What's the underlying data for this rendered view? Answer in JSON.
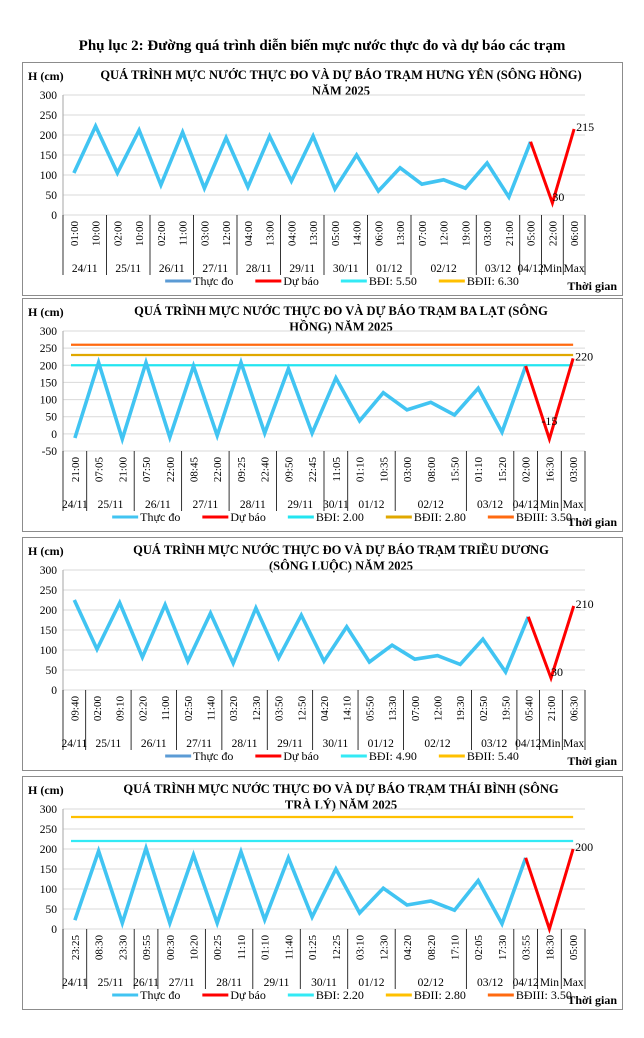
{
  "document_title": "Phụ lục 2: Đường quá trình diễn biến mực nước thực đo và dự báo các trạm",
  "chart_data": [
    {
      "type": "line",
      "title": [
        "QUÁ TRÌNH MỰC NƯỚC THỰC ĐO VÀ DỰ BÁO TRẠM HƯNG YÊN  (SÔNG HỒNG)",
        "NĂM 2025"
      ],
      "ylabel": "H (cm)",
      "xlabel": "Thời gian",
      "ylim": [
        0,
        300
      ],
      "yticks": [
        0,
        50,
        100,
        150,
        200,
        250,
        300
      ],
      "grid": true,
      "legend_position": "bottom",
      "categories": [
        "01:00",
        "10:00",
        "02:00",
        "10:00",
        "02:00",
        "11:00",
        "03:00",
        "12:00",
        "04:00",
        "13:00",
        "04:00",
        "13:00",
        "05:00",
        "14:00",
        "06:00",
        "13:00",
        "07:00",
        "12:00",
        "19:00",
        "03:00",
        "21:00",
        "05:00",
        "22:00",
        "06:00"
      ],
      "groups": [
        {
          "label": "24/11",
          "count": 2
        },
        {
          "label": "25/11",
          "count": 2
        },
        {
          "label": "26/11",
          "count": 2
        },
        {
          "label": "27/11",
          "count": 2
        },
        {
          "label": "28/11",
          "count": 2
        },
        {
          "label": "29/11",
          "count": 2
        },
        {
          "label": "30/11",
          "count": 2
        },
        {
          "label": "01/12",
          "count": 2
        },
        {
          "label": "02/12",
          "count": 3
        },
        {
          "label": "03/12",
          "count": 2
        },
        {
          "label": "04/12",
          "count": 1
        },
        {
          "label": "Min",
          "count": 1
        },
        {
          "label": "Max",
          "count": 1
        }
      ],
      "series": [
        {
          "name": "Thực đo",
          "color": "#41c4f2",
          "legend_color": "#5b9bd5",
          "values": [
            105,
            222,
            105,
            212,
            75,
            207,
            67,
            193,
            70,
            197,
            85,
            197,
            65,
            150,
            60,
            118,
            77,
            88,
            67,
            130,
            45,
            183,
            null,
            null
          ]
        },
        {
          "name": "Dự báo",
          "color": "#ff0000",
          "legend_color": "#ff0000",
          "values": [
            null,
            null,
            null,
            null,
            null,
            null,
            null,
            null,
            null,
            null,
            null,
            null,
            null,
            null,
            null,
            null,
            null,
            null,
            null,
            null,
            null,
            183,
            30,
            215
          ]
        }
      ],
      "data_labels": [
        {
          "index": 22,
          "text": "30"
        },
        {
          "index": 23,
          "text": "215"
        }
      ],
      "thresholds": [
        {
          "name": "BĐI: 5.50",
          "color": "#33eaf5",
          "level_cm": null
        },
        {
          "name": "BĐII: 6.30",
          "color": "#ffc000",
          "level_cm": null
        }
      ]
    },
    {
      "type": "line",
      "title": [
        "QUÁ TRÌNH MỰC NƯỚC THỰC ĐO VÀ DỰ BÁO TRẠM  BA LẠT (SÔNG",
        "HỒNG) NĂM 2025"
      ],
      "ylabel": "H (cm)",
      "xlabel": "Thời gian",
      "ylim": [
        -50,
        300
      ],
      "yticks": [
        -50,
        0,
        50,
        100,
        150,
        200,
        250,
        300
      ],
      "grid": true,
      "legend_position": "bottom",
      "categories": [
        "21:00",
        "07:05",
        "21:00",
        "07:50",
        "22:00",
        "08:45",
        "22:00",
        "09:25",
        "22:40",
        "09:50",
        "22:45",
        "11:05",
        "01:10",
        "10:35",
        "03:00",
        "08:00",
        "15:50",
        "01:10",
        "15:20",
        "02:00",
        "16:30",
        "03:00"
      ],
      "groups": [
        {
          "label": "24/11",
          "count": 1
        },
        {
          "label": "25/11",
          "count": 2
        },
        {
          "label": "26/11",
          "count": 2
        },
        {
          "label": "27/11",
          "count": 2
        },
        {
          "label": "28/11",
          "count": 2
        },
        {
          "label": "29/11",
          "count": 2
        },
        {
          "label": "30/11",
          "count": 1
        },
        {
          "label": "01/12",
          "count": 2
        },
        {
          "label": "02/12",
          "count": 3
        },
        {
          "label": "03/12",
          "count": 2
        },
        {
          "label": "04/12",
          "count": 1
        },
        {
          "label": "Min",
          "count": 1
        },
        {
          "label": "Max",
          "count": 1
        }
      ],
      "series": [
        {
          "name": "Thực đo",
          "color": "#41c4f2",
          "legend_color": "#41c4f2",
          "values": [
            -12,
            208,
            -15,
            208,
            -10,
            198,
            -5,
            208,
            2,
            190,
            2,
            163,
            38,
            120,
            70,
            92,
            55,
            133,
            5,
            198,
            null,
            null
          ]
        },
        {
          "name": "Dự báo",
          "color": "#ff0000",
          "legend_color": "#ff0000",
          "values": [
            null,
            null,
            null,
            null,
            null,
            null,
            null,
            null,
            null,
            null,
            null,
            null,
            null,
            null,
            null,
            null,
            null,
            null,
            null,
            198,
            -15,
            220
          ]
        }
      ],
      "data_labels": [
        {
          "index": 20,
          "text": "-15"
        },
        {
          "index": 21,
          "text": "220"
        }
      ],
      "thresholds": [
        {
          "name": "BĐI: 2.00",
          "color": "#22e5f0",
          "level_cm": 200
        },
        {
          "name": "BĐII: 2.80",
          "color": "#e0a800",
          "level_cm": 230
        },
        {
          "name": "BĐIII: 3.50",
          "color": "#ff6a10",
          "level_cm": 260
        }
      ]
    },
    {
      "type": "line",
      "title": [
        "QUÁ TRÌNH MỰC NƯỚC THỰC ĐO VÀ DỰ BÁO TRẠM  TRIỀU DƯƠNG",
        "(SÔNG  LUỘC) NĂM 2025"
      ],
      "ylabel": "H (cm)",
      "xlabel": "Thời gian",
      "ylim": [
        0,
        300
      ],
      "yticks": [
        0,
        50,
        100,
        150,
        200,
        250,
        300
      ],
      "grid": true,
      "legend_position": "bottom",
      "categories": [
        "09:40",
        "02:00",
        "09:10",
        "02:20",
        "11:00",
        "02:50",
        "11:40",
        "03:20",
        "12:30",
        "03:50",
        "12:50",
        "04:20",
        "14:10",
        "05:50",
        "13:30",
        "07:00",
        "12:00",
        "19:30",
        "02:50",
        "19:50",
        "05:40",
        "21:00",
        "06:30"
      ],
      "groups": [
        {
          "label": "24/11",
          "count": 1
        },
        {
          "label": "25/11",
          "count": 2
        },
        {
          "label": "26/11",
          "count": 2
        },
        {
          "label": "27/11",
          "count": 2
        },
        {
          "label": "28/11",
          "count": 2
        },
        {
          "label": "29/11",
          "count": 2
        },
        {
          "label": "30/11",
          "count": 2
        },
        {
          "label": "01/12",
          "count": 2
        },
        {
          "label": "02/12",
          "count": 3
        },
        {
          "label": "03/12",
          "count": 2
        },
        {
          "label": "04/12",
          "count": 1
        },
        {
          "label": "Min",
          "count": 1
        },
        {
          "label": "Max",
          "count": 1
        }
      ],
      "series": [
        {
          "name": "Thực đo",
          "color": "#41c4f2",
          "legend_color": "#5b9bd5",
          "values": [
            225,
            102,
            218,
            82,
            213,
            72,
            192,
            67,
            205,
            80,
            187,
            72,
            158,
            70,
            112,
            77,
            86,
            64,
            127,
            45,
            183,
            null,
            null
          ]
        },
        {
          "name": "Dự báo",
          "color": "#ff0000",
          "legend_color": "#ff0000",
          "values": [
            null,
            null,
            null,
            null,
            null,
            null,
            null,
            null,
            null,
            null,
            null,
            null,
            null,
            null,
            null,
            null,
            null,
            null,
            null,
            null,
            183,
            30,
            210
          ]
        }
      ],
      "data_labels": [
        {
          "index": 21,
          "text": "30"
        },
        {
          "index": 22,
          "text": "210"
        }
      ],
      "thresholds": [
        {
          "name": "BĐI: 4.90",
          "color": "#33eaf5",
          "level_cm": null
        },
        {
          "name": "BĐII: 5.40",
          "color": "#ffc000",
          "level_cm": null
        }
      ]
    },
    {
      "type": "line",
      "title": [
        "QUÁ TRÌNH MỰC NƯỚC THỰC ĐO VÀ DỰ BÁO TRẠM THÁI BÌNH (SÔNG",
        "TRÀ LÝ) NĂM 2025"
      ],
      "ylabel": "H (cm)",
      "xlabel": "Thời gian",
      "ylim": [
        0,
        300
      ],
      "yticks": [
        0,
        50,
        100,
        150,
        200,
        250,
        300
      ],
      "grid": true,
      "legend_position": "bottom",
      "categories": [
        "23:25",
        "08:30",
        "23:30",
        "09:55",
        "00:30",
        "10:20",
        "00:25",
        "11:10",
        "01:10",
        "11:40",
        "01:25",
        "12:25",
        "03:10",
        "12:30",
        "04:20",
        "08:20",
        "17:10",
        "02:05",
        "17:30",
        "03:55",
        "18:30",
        "05:00"
      ],
      "groups": [
        {
          "label": "24/11",
          "count": 1
        },
        {
          "label": "25/11",
          "count": 2
        },
        {
          "label": "26/11",
          "count": 1
        },
        {
          "label": "27/11",
          "count": 2
        },
        {
          "label": "28/11",
          "count": 2
        },
        {
          "label": "29/11",
          "count": 2
        },
        {
          "label": "30/11",
          "count": 2
        },
        {
          "label": "01/12",
          "count": 2
        },
        {
          "label": "02/12",
          "count": 3
        },
        {
          "label": "03/12",
          "count": 2
        },
        {
          "label": "04/12",
          "count": 1
        },
        {
          "label": "Min",
          "count": 1
        },
        {
          "label": "Max",
          "count": 1
        }
      ],
      "series": [
        {
          "name": "Thực đo",
          "color": "#41c4f2",
          "legend_color": "#41c4f2",
          "values": [
            22,
            195,
            15,
            202,
            15,
            185,
            15,
            193,
            23,
            178,
            30,
            150,
            40,
            102,
            60,
            70,
            47,
            121,
            13,
            178,
            null,
            null
          ]
        },
        {
          "name": "Dự báo",
          "color": "#ff0000",
          "legend_color": "#ff0000",
          "values": [
            null,
            null,
            null,
            null,
            null,
            null,
            null,
            null,
            null,
            null,
            null,
            null,
            null,
            null,
            null,
            null,
            null,
            null,
            null,
            178,
            0,
            200
          ]
        }
      ],
      "data_labels": [
        {
          "index": 21,
          "text": "200"
        }
      ],
      "thresholds": [
        {
          "name": "BĐI: 2.20",
          "color": "#33eaf5",
          "level_cm": 220
        },
        {
          "name": "BĐII: 2.80",
          "color": "#ffc000",
          "level_cm": 280
        },
        {
          "name": "BĐIII: 3.50",
          "color": "#ff6a10",
          "level_cm": null
        }
      ]
    }
  ]
}
